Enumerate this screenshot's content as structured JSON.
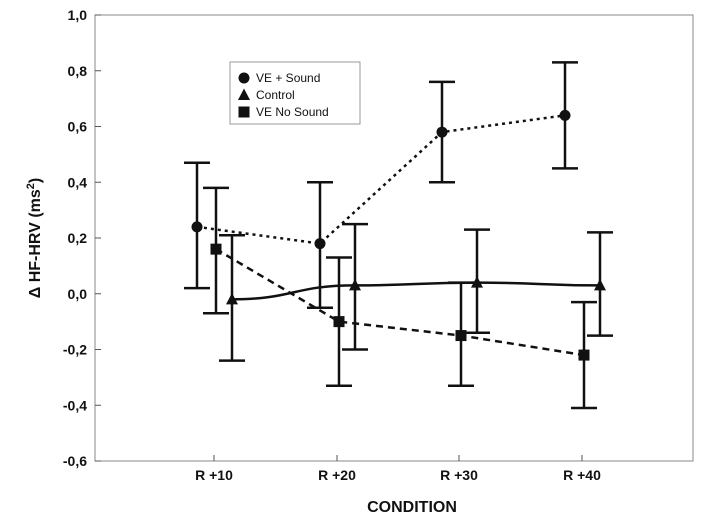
{
  "chart_data": {
    "type": "line",
    "xlabel": "CONDITION",
    "ylabel_main": "Δ HF-HRV (ms",
    "ylabel_sup": "2",
    "ylabel_close": ")",
    "categories": [
      "R +10",
      "R +20",
      "R +30",
      "R +40"
    ],
    "ylim": [
      -0.6,
      1.0
    ],
    "yticks": [
      1.0,
      0.8,
      0.6,
      0.4,
      0.2,
      0.0,
      -0.2,
      -0.4,
      -0.6
    ],
    "ytick_labels": [
      "1,0",
      "0,8",
      "0,6",
      "0,4",
      "0,2",
      "0,0",
      "-0,2",
      "-0,4",
      "-0,6"
    ],
    "grid": false,
    "legend_position": "top-left",
    "series": [
      {
        "name": "VE + Sound",
        "marker": "circle",
        "line_style": "dotted",
        "values": [
          0.24,
          0.18,
          0.58,
          0.64
        ],
        "err_high": [
          0.47,
          0.4,
          0.76,
          0.83
        ],
        "err_low": [
          0.02,
          -0.05,
          0.4,
          0.45
        ]
      },
      {
        "name": "Control",
        "marker": "triangle",
        "line_style": "solid",
        "values": [
          -0.02,
          0.03,
          0.04,
          0.03
        ],
        "err_high": [
          0.21,
          0.25,
          0.23,
          0.22
        ],
        "err_low": [
          -0.24,
          -0.2,
          -0.14,
          -0.15
        ]
      },
      {
        "name": "VE No Sound",
        "marker": "square",
        "line_style": "dashed",
        "values": [
          0.16,
          -0.1,
          -0.15,
          -0.22
        ],
        "err_high": [
          0.38,
          0.13,
          0.04,
          -0.03
        ],
        "err_low": [
          -0.07,
          -0.33,
          -0.33,
          -0.41
        ]
      }
    ]
  }
}
